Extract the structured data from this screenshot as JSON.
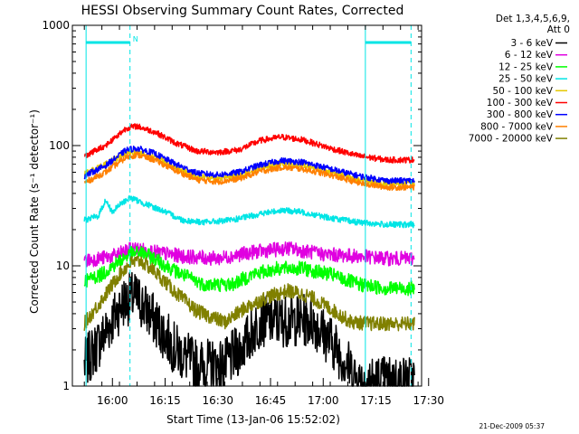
{
  "chart_data": {
    "type": "line",
    "title": "HESSI Observing Summary Count Rates, Corrected",
    "ylabel": "Corrected Count Rate (s⁻¹ detector⁻¹)",
    "xlabel": "Start Time (13-Jan-06 15:52:02)",
    "yscale": "log",
    "ylim": [
      1,
      1000
    ],
    "xlim": [
      "15:52",
      "17:32"
    ],
    "y_ticks": [
      {
        "v": 1,
        "label": "1"
      },
      {
        "v": 10,
        "label": "10"
      },
      {
        "v": 100,
        "label": "100"
      },
      {
        "v": 1000,
        "label": "1000"
      }
    ],
    "x_ticks": [
      {
        "t": 8,
        "label": "16:00"
      },
      {
        "t": 23,
        "label": "16:15"
      },
      {
        "t": 38,
        "label": "16:30"
      },
      {
        "t": 53,
        "label": "16:45"
      },
      {
        "t": 68,
        "label": "17:00"
      },
      {
        "t": 83,
        "label": "17:15"
      },
      {
        "t": 98,
        "label": "17:30"
      }
    ],
    "legend_header": [
      "Det 1,3,4,5,6,9,",
      "Att 0"
    ],
    "legend_placement": "right",
    "timestamp": "21-Dec-2009 05:37",
    "marker_label": "N",
    "vlines": [
      {
        "t": 0.5,
        "color": "#00e5e5",
        "dashed": false
      },
      {
        "t": 13,
        "color": "#00e5e5",
        "dashed": true
      },
      {
        "t": 80,
        "color": "#00e5e5",
        "dashed": false
      },
      {
        "t": 93,
        "color": "#00e5e5",
        "dashed": true
      }
    ],
    "flag_bars": [
      {
        "t0": 0.5,
        "t1": 13,
        "value": 720,
        "color": "#00e5e5"
      },
      {
        "t0": 80,
        "t1": 93,
        "value": 720,
        "color": "#00e5e5"
      }
    ],
    "series": [
      {
        "name": "3 - 6 keV",
        "color": "#000000",
        "x": [
          0,
          5,
          9,
          11,
          14,
          16,
          20,
          26,
          32,
          40,
          46,
          50,
          55,
          60,
          65,
          71,
          75,
          78,
          83,
          88,
          94
        ],
        "y": [
          1.5,
          2.5,
          4,
          5,
          5.5,
          5,
          3.5,
          2,
          1.5,
          1.5,
          2.3,
          3.5,
          3.5,
          3.5,
          3.5,
          2.2,
          1.5,
          1.1,
          1.1,
          1.1,
          1.1
        ]
      },
      {
        "name": "6 - 12 keV",
        "color": "#e000e0",
        "x": [
          0,
          8,
          14,
          20,
          28,
          38,
          48,
          58,
          68,
          78,
          86,
          94
        ],
        "y": [
          11,
          12,
          14,
          13,
          12,
          11.5,
          13,
          14,
          12.5,
          12,
          11.5,
          11.5
        ]
      },
      {
        "name": "12 - 25 keV",
        "color": "#00ff00",
        "x": [
          0,
          5,
          10,
          13,
          16,
          20,
          26,
          34,
          42,
          48,
          55,
          62,
          70,
          78,
          86,
          94
        ],
        "y": [
          7.5,
          8.5,
          11,
          12.5,
          13,
          11.5,
          9,
          7,
          7,
          8.5,
          9.5,
          9.5,
          8.5,
          7,
          6.5,
          6.5
        ]
      },
      {
        "name": "25 - 50 keV",
        "color": "#00e5e5",
        "x": [
          0,
          4,
          6,
          8,
          10,
          13,
          17,
          22,
          28,
          34,
          42,
          50,
          56,
          62,
          70,
          78,
          86,
          94
        ],
        "y": [
          24,
          26,
          35,
          28,
          32,
          37,
          33,
          29,
          24,
          23,
          24,
          27,
          29,
          28,
          25,
          23,
          22,
          22
        ]
      },
      {
        "name": "50 - 100 keV",
        "color": "#e5c800",
        "x": [
          0,
          6,
          12,
          15,
          20,
          26,
          32,
          38,
          44,
          50,
          56,
          62,
          70,
          78,
          86,
          94
        ],
        "y": [
          58,
          70,
          86,
          88,
          80,
          65,
          55,
          54,
          56,
          66,
          71,
          69,
          61,
          52,
          48,
          48
        ]
      },
      {
        "name": "100 - 300 keV",
        "color": "#ff0000",
        "x": [
          0,
          6,
          12,
          15,
          20,
          26,
          32,
          38,
          44,
          50,
          56,
          62,
          70,
          78,
          86,
          94
        ],
        "y": [
          82,
          100,
          140,
          145,
          130,
          105,
          90,
          88,
          92,
          110,
          118,
          112,
          95,
          82,
          76,
          76
        ]
      },
      {
        "name": "300 - 800 keV",
        "color": "#0000ff",
        "x": [
          0,
          6,
          12,
          15,
          20,
          26,
          32,
          38,
          44,
          50,
          56,
          62,
          70,
          78,
          86,
          94
        ],
        "y": [
          56,
          68,
          92,
          95,
          86,
          70,
          59,
          57,
          60,
          69,
          75,
          73,
          64,
          56,
          51,
          51
        ]
      },
      {
        "name": "800 - 7000 keV",
        "color": "#ff8000",
        "x": [
          0,
          6,
          12,
          15,
          20,
          26,
          32,
          38,
          44,
          50,
          56,
          62,
          70,
          78,
          86,
          94
        ],
        "y": [
          49,
          60,
          80,
          84,
          76,
          62,
          52,
          50,
          53,
          61,
          66,
          64,
          57,
          49,
          45,
          45
        ]
      },
      {
        "name": "7000 - 20000 keV",
        "color": "#808000",
        "x": [
          0,
          5,
          10,
          13,
          16,
          20,
          26,
          32,
          40,
          46,
          52,
          58,
          64,
          70,
          76,
          82,
          88,
          94
        ],
        "y": [
          3.3,
          5.2,
          8.5,
          10.5,
          11,
          9,
          6,
          4.2,
          3.4,
          4.5,
          5.5,
          6.2,
          5.6,
          4.4,
          3.4,
          3.3,
          3.3,
          3.3
        ]
      }
    ]
  }
}
